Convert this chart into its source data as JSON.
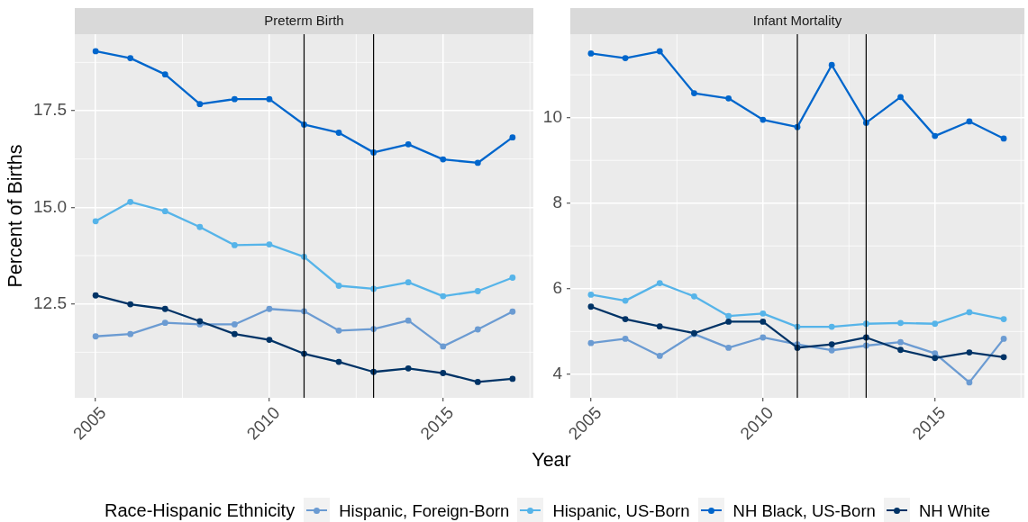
{
  "chart_data": [
    {
      "type": "line",
      "title": "Preterm Birth",
      "xlabel": "Year",
      "ylabel": "Percent of Births",
      "legend_title": "Race-Hispanic Ethnicity",
      "legend": "bottom",
      "marker": "circle",
      "line_style": "solid",
      "grid": true,
      "x": [
        2005,
        2006,
        2007,
        2008,
        2009,
        2010,
        2011,
        2012,
        2013,
        2014,
        2015,
        2016,
        2017
      ],
      "xlim": [
        2004.4,
        2017.6
      ],
      "xticks": [
        2005,
        2010,
        2015
      ],
      "ylim": [
        10.07,
        19.48
      ],
      "yticks": [
        12.5,
        {
          "value": 15,
          "label": "15.0"
        },
        17.5
      ],
      "ref_lines": [
        {
          "axis": "x",
          "value": 2011,
          "color": "#000000"
        },
        {
          "axis": "x",
          "value": 2013,
          "color": "#000000"
        }
      ],
      "series": [
        {
          "name": "Hispanic, Foreign-Born",
          "color": "#6b9bd2",
          "values": [
            11.66,
            11.72,
            12.01,
            11.97,
            11.97,
            12.37,
            12.31,
            11.81,
            11.85,
            12.07,
            11.4,
            11.84,
            12.3
          ]
        },
        {
          "name": "Hispanic, US-Born",
          "color": "#56b4e9",
          "values": [
            14.64,
            15.14,
            14.9,
            14.49,
            14.02,
            14.04,
            13.72,
            12.97,
            12.89,
            13.06,
            12.7,
            12.83,
            13.18
          ]
        },
        {
          "name": "NH Black, US-Born",
          "color": "#0066cc",
          "values": [
            19.04,
            18.86,
            18.44,
            17.67,
            17.8,
            17.8,
            17.14,
            16.93,
            16.42,
            16.63,
            16.24,
            16.15,
            16.81
          ]
        },
        {
          "name": "NH White",
          "color": "#003366",
          "values": [
            12.72,
            12.49,
            12.37,
            12.05,
            11.72,
            11.57,
            11.21,
            11.0,
            10.74,
            10.83,
            10.71,
            10.48,
            10.56
          ]
        }
      ]
    },
    {
      "type": "line",
      "title": "Infant Mortality",
      "marker": "circle",
      "line_style": "solid",
      "grid": true,
      "x": [
        2005,
        2006,
        2007,
        2008,
        2009,
        2010,
        2011,
        2012,
        2013,
        2014,
        2015,
        2016,
        2017
      ],
      "xlim": [
        2004.4,
        2017.6
      ],
      "xticks": [
        2005,
        2010,
        2015
      ],
      "ylim": [
        3.45,
        11.95
      ],
      "yticks": [
        4,
        6,
        8,
        10
      ],
      "ref_lines": [
        {
          "axis": "x",
          "value": 2011,
          "color": "#000000"
        },
        {
          "axis": "x",
          "value": 2013,
          "color": "#000000"
        }
      ],
      "series": [
        {
          "color": "#6b9bd2",
          "values": [
            4.73,
            4.83,
            4.43,
            4.94,
            4.62,
            4.86,
            4.7,
            4.56,
            4.67,
            4.75,
            4.49,
            3.81,
            4.83
          ]
        },
        {
          "color": "#56b4e9",
          "values": [
            5.86,
            5.72,
            6.13,
            5.82,
            5.36,
            5.42,
            5.11,
            5.11,
            5.18,
            5.2,
            5.18,
            5.45,
            5.29
          ]
        },
        {
          "color": "#0066cc",
          "values": [
            11.5,
            11.39,
            11.55,
            10.57,
            10.45,
            9.95,
            9.78,
            11.23,
            9.88,
            10.48,
            9.57,
            9.91,
            9.51
          ]
        },
        {
          "color": "#003366",
          "values": [
            5.58,
            5.29,
            5.12,
            4.96,
            5.23,
            5.23,
            4.62,
            4.7,
            4.86,
            4.57,
            4.38,
            4.51,
            4.4
          ]
        }
      ]
    }
  ]
}
